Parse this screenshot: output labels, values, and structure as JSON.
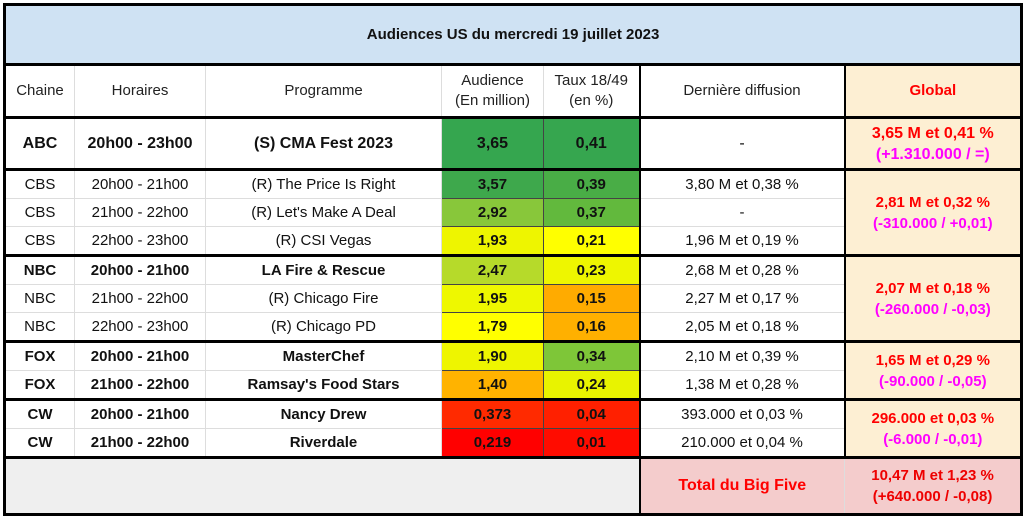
{
  "title": "Audiences US du mercredi 19 juillet 2023",
  "headers": {
    "chaine": "Chaine",
    "horaires": "Horaires",
    "programme": "Programme",
    "audience_l1": "Audience",
    "audience_l2": "(En million)",
    "taux_l1": "Taux 18/49",
    "taux_l2": "(en %)",
    "derniere": "Dernière diffusion",
    "global": "Global"
  },
  "groups": [
    {
      "bold": true,
      "global": "3,65 M et 0,41 %",
      "delta": "(+1.310.000 / =)",
      "rows": [
        {
          "chaine": "ABC",
          "horaires": "20h00 - 23h00",
          "programme": "(S) CMA Fest 2023",
          "audience": "3,65",
          "audience_color": "#35a64f",
          "taux": "0,41",
          "taux_color": "#36a64f",
          "derniere": "-"
        }
      ]
    },
    {
      "bold": false,
      "global": "2,81 M et 0,32 %",
      "delta": "(-310.000 / +0,01)",
      "rows": [
        {
          "chaine": "CBS",
          "horaires": "20h00 - 21h00",
          "programme": "(R) The Price Is Right",
          "audience": "3,57",
          "audience_color": "#3ea84c",
          "taux": "0,39",
          "taux_color": "#49ad46",
          "derniere": "3,80 M et 0,38 %"
        },
        {
          "chaine": "CBS",
          "horaires": "21h00 - 22h00",
          "programme": "(R) Let's Make A Deal",
          "audience": "2,92",
          "audience_color": "#88c73a",
          "taux": "0,37",
          "taux_color": "#62b93d",
          "derniere": "-"
        },
        {
          "chaine": "CBS",
          "horaires": "22h00 - 23h00",
          "programme": "(R) CSI Vegas",
          "audience": "1,93",
          "audience_color": "#eef500",
          "taux": "0,21",
          "taux_color": "#ffff00",
          "derniere": "1,96 M et 0,19 %"
        }
      ]
    },
    {
      "bold": false,
      "global": "2,07 M et 0,18 %",
      "delta": "(-260.000 / -0,03)",
      "rows": [
        {
          "chaine": "NBC",
          "horaires": "20h00 - 21h00",
          "programme": "LA Fire & Rescue",
          "bold": true,
          "audience": "2,47",
          "audience_color": "#b6da2a",
          "taux": "0,23",
          "taux_color": "#eef600",
          "derniere": "2,68 M et 0,28 %"
        },
        {
          "chaine": "NBC",
          "horaires": "21h00 - 22h00",
          "programme": "(R) Chicago Fire",
          "audience": "1,95",
          "audience_color": "#eef800",
          "taux": "0,15",
          "taux_color": "#ffab00",
          "derniere": "2,27 M et 0,17 %"
        },
        {
          "chaine": "NBC",
          "horaires": "22h00 - 23h00",
          "programme": "(R) Chicago PD",
          "audience": "1,79",
          "audience_color": "#ffff00",
          "taux": "0,16",
          "taux_color": "#ffb000",
          "derniere": "2,05 M et 0,18 %"
        }
      ]
    },
    {
      "bold": true,
      "global": "1,65 M et 0,29 %",
      "delta": "(-90.000 / -0,05)",
      "rows": [
        {
          "chaine": "FOX",
          "horaires": "20h00 - 21h00",
          "programme": "MasterChef",
          "audience": "1,90",
          "audience_color": "#eef500",
          "taux": "0,34",
          "taux_color": "#7ec638",
          "derniere": "2,10 M et 0,39 %"
        },
        {
          "chaine": "FOX",
          "horaires": "21h00 - 22h00",
          "programme": "Ramsay's Food Stars",
          "audience": "1,40",
          "audience_color": "#ffb300",
          "taux": "0,24",
          "taux_color": "#e8f300",
          "derniere": "1,38 M et 0,28 %"
        }
      ]
    },
    {
      "bold": true,
      "global": "296.000 et 0,03 %",
      "delta": "(-6.000 / -0,01)",
      "rows": [
        {
          "chaine": "CW",
          "horaires": "20h00 - 21h00",
          "programme": "Nancy Drew",
          "audience": "0,373",
          "audience_color": "#ff2a00",
          "taux": "0,04",
          "taux_color": "#ff2000",
          "derniere": "393.000 et 0,03 %"
        },
        {
          "chaine": "CW",
          "horaires": "21h00 - 22h00",
          "programme": "Riverdale",
          "audience": "0,219",
          "audience_color": "#ff0000",
          "taux": "0,01",
          "taux_color": "#ff0c00",
          "derniere": "210.000 et 0,04 %"
        }
      ]
    }
  ],
  "total": {
    "label": "Total du Big Five",
    "value": "10,47 M et 1,23 %",
    "delta": "(+640.000 / -0,08)"
  }
}
